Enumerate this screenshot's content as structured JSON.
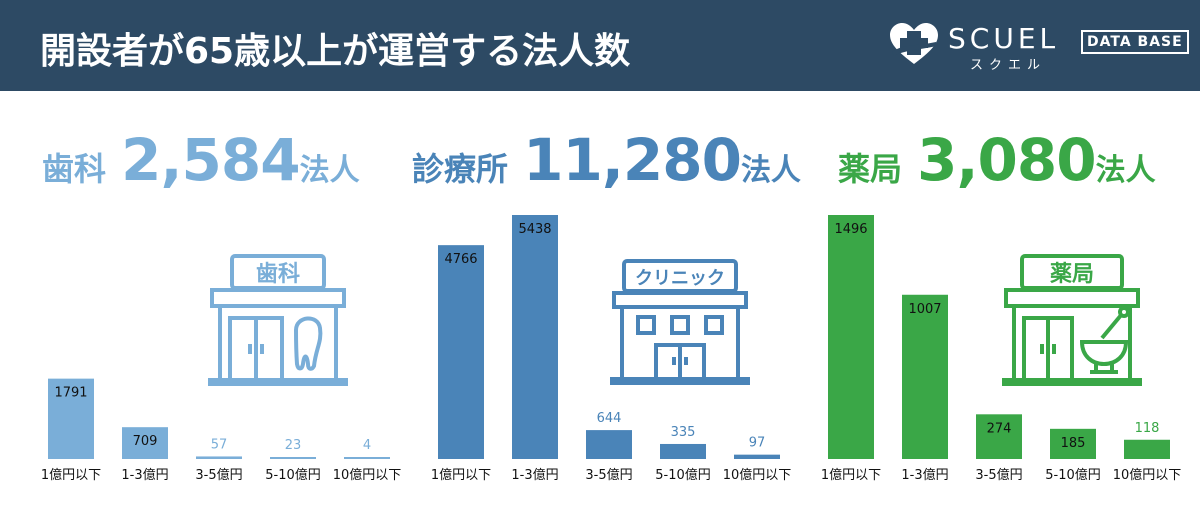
{
  "header": {
    "title": "開設者が65歳以上が運営する法人数"
  },
  "logo": {
    "brand": "SCUEL",
    "badge": "DATA BASE",
    "kana": "スクエル"
  },
  "colors": {
    "header_bg": "#2d4a64",
    "dental": "#7aaed8",
    "clinic": "#4a84b8",
    "pharmacy": "#3aa747"
  },
  "chart_data": [
    {
      "type": "bar",
      "title": "歯科 2,584法人",
      "categories": [
        "1億円以下",
        "1-3億円",
        "3-5億円",
        "5-10億円",
        "10億円以下"
      ],
      "values": [
        1791,
        709,
        57,
        23,
        4
      ],
      "ylim": [
        0,
        5438
      ]
    },
    {
      "type": "bar",
      "title": "診療所 11,280法人",
      "categories": [
        "1億円以下",
        "1-3億円",
        "3-5億円",
        "5-10億円",
        "10億円以下"
      ],
      "values": [
        4766,
        5438,
        644,
        335,
        97
      ],
      "ylim": [
        0,
        5438
      ]
    },
    {
      "type": "bar",
      "title": "薬局 3,080法人",
      "categories": [
        "1億円以下",
        "1-3億円",
        "3-5億円",
        "5-10億円",
        "10億円以下"
      ],
      "values": [
        1496,
        1007,
        274,
        185,
        118
      ],
      "ylim": [
        0,
        1496
      ]
    }
  ],
  "panels": [
    {
      "label": "歯科",
      "total": "2,584",
      "unit": "法人",
      "sign": "歯科",
      "color": "#7aaed8"
    },
    {
      "label": "診療所",
      "total": "11,280",
      "unit": "法人",
      "sign": "クリニック",
      "color": "#4a84b8"
    },
    {
      "label": "薬局",
      "total": "3,080",
      "unit": "法人",
      "sign": "薬局",
      "color": "#3aa747"
    }
  ]
}
